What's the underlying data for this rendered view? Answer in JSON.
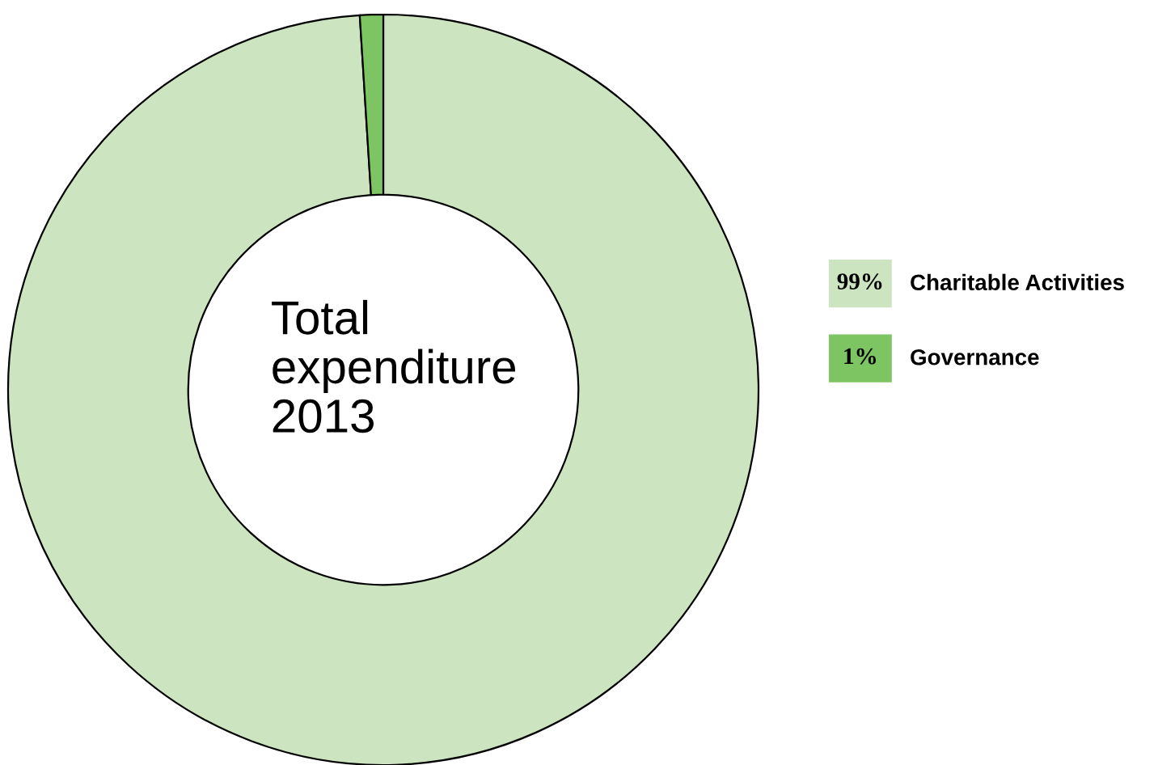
{
  "chart_data": {
    "type": "donut",
    "title": "Total\nexpenditure\n2013",
    "categories": [
      "Charitable Activities",
      "Governance"
    ],
    "values": [
      99,
      1
    ],
    "colors": [
      "#cce4bf",
      "#7dc462"
    ],
    "value_labels": [
      "99%",
      "1%"
    ],
    "legend": "right"
  }
}
